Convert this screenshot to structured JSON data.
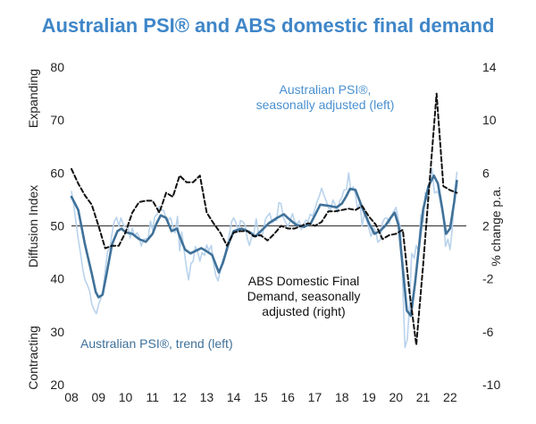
{
  "title": "Australian PSI® and ABS domestic final demand",
  "colors": {
    "title": "#3f86c8",
    "psi_sa": "#b9d3ec",
    "psi_trend": "#3f7199",
    "abs": "#111111",
    "refline": "#444444",
    "label_sa": "#4a90d0",
    "label_trend": "#3f7199"
  },
  "chart_data": {
    "type": "line",
    "title": "Australian PSI® and ABS domestic final demand",
    "ylabel": "Diffusion Index",
    "ylabel_top": "Expanding",
    "ylabel_bottom": "Contracting",
    "y2label": "% change p.a.",
    "xlim": [
      2008.0,
      2022.6
    ],
    "ylim": [
      20,
      80
    ],
    "y2lim": [
      -10,
      14
    ],
    "xticks": [
      "08",
      "09",
      "10",
      "11",
      "12",
      "13",
      "14",
      "15",
      "16",
      "17",
      "18",
      "19",
      "20",
      "21",
      "22"
    ],
    "yticks": [
      "20",
      "30",
      "40",
      "50",
      "60",
      "70",
      "80"
    ],
    "y2ticks": [
      "-10",
      "-6",
      "-2",
      "2",
      "6",
      "10",
      "14"
    ],
    "reference_line": 50,
    "grid": false,
    "series": [
      {
        "name": "Australian PSI®, seasonally adjusted (left)",
        "axis": "left",
        "style": "thin-light",
        "x": [
          2008.0,
          2008.08,
          2008.17,
          2008.25,
          2008.33,
          2008.42,
          2008.5,
          2008.58,
          2008.67,
          2008.75,
          2008.83,
          2008.92,
          2009.0,
          2009.08,
          2009.17,
          2009.25,
          2009.33,
          2009.42,
          2009.5,
          2009.58,
          2009.67,
          2009.75,
          2009.83,
          2009.92,
          2010.0,
          2010.08,
          2010.17,
          2010.25,
          2010.33,
          2010.42,
          2010.5,
          2010.58,
          2010.67,
          2010.75,
          2010.83,
          2010.92,
          2011.0,
          2011.08,
          2011.17,
          2011.25,
          2011.33,
          2011.42,
          2011.5,
          2011.58,
          2011.67,
          2011.75,
          2011.83,
          2011.92,
          2012.0,
          2012.08,
          2012.17,
          2012.25,
          2012.33,
          2012.42,
          2012.5,
          2012.58,
          2012.67,
          2012.75,
          2012.83,
          2012.92,
          2013.0,
          2013.08,
          2013.17,
          2013.25,
          2013.33,
          2013.42,
          2013.5,
          2013.58,
          2013.67,
          2013.75,
          2013.83,
          2013.92,
          2014.0,
          2014.08,
          2014.17,
          2014.25,
          2014.33,
          2014.42,
          2014.5,
          2014.58,
          2014.67,
          2014.75,
          2014.83,
          2014.92,
          2015.0,
          2015.08,
          2015.17,
          2015.25,
          2015.33,
          2015.42,
          2015.5,
          2015.58,
          2015.67,
          2015.75,
          2015.83,
          2015.92,
          2016.0,
          2016.08,
          2016.17,
          2016.25,
          2016.33,
          2016.42,
          2016.5,
          2016.58,
          2016.67,
          2016.75,
          2016.83,
          2016.92,
          2017.0,
          2017.08,
          2017.17,
          2017.25,
          2017.33,
          2017.42,
          2017.5,
          2017.58,
          2017.67,
          2017.75,
          2017.83,
          2017.92,
          2018.0,
          2018.08,
          2018.17,
          2018.25,
          2018.33,
          2018.42,
          2018.5,
          2018.58,
          2018.67,
          2018.75,
          2018.83,
          2018.92,
          2019.0,
          2019.08,
          2019.17,
          2019.25,
          2019.33,
          2019.42,
          2019.5,
          2019.58,
          2019.67,
          2019.75,
          2019.83,
          2019.92,
          2020.0,
          2020.08,
          2020.17,
          2020.25,
          2020.33,
          2020.42,
          2020.5,
          2020.58,
          2020.67,
          2020.75,
          2020.83,
          2020.92,
          2021.0,
          2021.08,
          2021.17,
          2021.25,
          2021.33,
          2021.42,
          2021.5,
          2021.58,
          2021.67,
          2021.75,
          2021.83,
          2021.92,
          2022.0,
          2022.08,
          2022.17,
          2022.25
        ],
        "values": [
          56.5,
          54.1,
          50.6,
          47.5,
          45.0,
          41.8,
          39.8,
          38.9,
          37.7,
          35.3,
          34.2,
          33.4,
          35.1,
          36.2,
          37.9,
          41.6,
          45.1,
          45.9,
          48.5,
          50.8,
          51.6,
          49.9,
          51.5,
          50.2,
          49.8,
          50.0,
          47.7,
          49.6,
          48.0,
          48.7,
          48.0,
          46.2,
          47.4,
          47.6,
          47.5,
          50.9,
          49.2,
          51.7,
          52.2,
          53.7,
          53.1,
          52.8,
          51.2,
          51.2,
          51.5,
          49.8,
          48.7,
          51.8,
          45.3,
          48.8,
          45.3,
          42.2,
          39.8,
          42.9,
          43.3,
          46.1,
          45.0,
          43.3,
          45.0,
          44.4,
          46.4,
          45.3,
          46.3,
          43.2,
          40.7,
          39.6,
          41.4,
          43.3,
          44.6,
          46.4,
          48.1,
          50.8,
          51.5,
          50.6,
          48.9,
          51.0,
          50.8,
          50.2,
          47.7,
          46.3,
          47.9,
          48.7,
          51.3,
          48.4,
          47.9,
          48.7,
          51.2,
          51.9,
          52.4,
          50.6,
          51.0,
          51.0,
          54.4,
          54.2,
          51.6,
          50.7,
          49.8,
          50.8,
          52.3,
          50.9,
          50.3,
          51.0,
          49.3,
          50.3,
          51.1,
          50.8,
          52.2,
          51.9,
          53.2,
          54.6,
          55.7,
          57.1,
          55.9,
          54.7,
          53.4,
          53.0,
          54.9,
          54.0,
          52.5,
          54.7,
          55.4,
          56.8,
          56.9,
          60.0,
          56.7,
          57.4,
          56.0,
          53.1,
          54.6,
          50.0,
          52.4,
          51.1,
          49.5,
          48.0,
          49.7,
          48.9,
          46.9,
          47.4,
          50.6,
          51.4,
          51.5,
          50.4,
          51.9,
          52.8,
          53.5,
          51.4,
          49.6,
          38.5,
          27.0,
          28.6,
          34.8,
          44.8,
          43.9,
          46.3,
          45.3,
          52.1,
          50.7,
          56.3,
          54.9,
          58.2,
          60.9,
          56.2,
          56.5,
          56.1,
          53.7,
          51.9,
          46.1,
          47.5,
          45.5,
          49.5,
          56.6,
          60.1
        ]
      },
      {
        "name": "Australian PSI®, trend (left)",
        "axis": "left",
        "style": "thick",
        "x": [
          2008.0,
          2008.25,
          2008.5,
          2008.75,
          2008.9,
          2009.0,
          2009.15,
          2009.3,
          2009.5,
          2009.7,
          2009.85,
          2010.0,
          2010.25,
          2010.5,
          2010.75,
          2011.0,
          2011.15,
          2011.3,
          2011.5,
          2011.7,
          2011.9,
          2012.0,
          2012.2,
          2012.4,
          2012.6,
          2012.8,
          2013.0,
          2013.2,
          2013.35,
          2013.45,
          2013.6,
          2013.8,
          2014.0,
          2014.3,
          2014.6,
          2014.8,
          2015.0,
          2015.3,
          2015.6,
          2015.85,
          2016.0,
          2016.3,
          2016.6,
          2016.85,
          2017.0,
          2017.2,
          2017.5,
          2017.8,
          2018.0,
          2018.15,
          2018.3,
          2018.5,
          2018.75,
          2019.0,
          2019.2,
          2019.4,
          2019.6,
          2019.8,
          2019.95,
          2020.1,
          2020.25,
          2020.4,
          2020.55,
          2020.7,
          2020.85,
          2021.0,
          2021.2,
          2021.4,
          2021.55,
          2021.7,
          2021.85,
          2022.0,
          2022.15,
          2022.25
        ],
        "values": [
          55.5,
          53.0,
          46.5,
          41.0,
          37.5,
          36.5,
          37.0,
          41.0,
          46.5,
          49.0,
          49.5,
          48.8,
          48.5,
          47.5,
          47.0,
          48.5,
          50.5,
          52.0,
          51.5,
          49.0,
          49.5,
          48.0,
          45.5,
          44.8,
          45.3,
          45.8,
          45.2,
          44.5,
          42.5,
          41.2,
          43.0,
          46.5,
          49.0,
          49.5,
          48.8,
          48.0,
          49.0,
          50.5,
          51.5,
          52.2,
          51.5,
          50.2,
          49.8,
          50.5,
          52.0,
          54.0,
          53.8,
          53.5,
          54.2,
          55.5,
          57.0,
          56.8,
          53.5,
          50.5,
          48.5,
          49.0,
          50.0,
          51.5,
          52.5,
          50.0,
          42.0,
          34.0,
          33.0,
          39.0,
          46.0,
          53.0,
          57.5,
          59.5,
          58.0,
          53.5,
          48.5,
          49.5,
          54.5,
          58.5
        ]
      },
      {
        "name": "ABS Domestic Final Demand, seasonally adjusted (right)",
        "axis": "right",
        "style": "dashed",
        "x": [
          2008.0,
          2008.25,
          2008.5,
          2008.75,
          2009.0,
          2009.25,
          2009.5,
          2009.75,
          2010.0,
          2010.25,
          2010.5,
          2010.75,
          2011.0,
          2011.25,
          2011.5,
          2011.75,
          2012.0,
          2012.25,
          2012.5,
          2012.75,
          2013.0,
          2013.25,
          2013.5,
          2013.75,
          2014.0,
          2014.25,
          2014.5,
          2014.75,
          2015.0,
          2015.25,
          2015.5,
          2015.75,
          2016.0,
          2016.25,
          2016.5,
          2016.75,
          2017.0,
          2017.25,
          2017.5,
          2017.75,
          2018.0,
          2018.25,
          2018.5,
          2018.75,
          2019.0,
          2019.25,
          2019.5,
          2019.75,
          2020.0,
          2020.25,
          2020.5,
          2020.75,
          2021.0,
          2021.25,
          2021.5,
          2021.75,
          2022.0,
          2022.25
        ],
        "values": [
          6.3,
          5.2,
          4.3,
          3.6,
          2.0,
          0.3,
          0.5,
          0.5,
          1.5,
          3.0,
          3.8,
          3.9,
          3.9,
          3.0,
          4.5,
          4.2,
          5.8,
          5.3,
          5.3,
          5.8,
          3.0,
          2.2,
          1.5,
          0.5,
          1.5,
          1.6,
          1.6,
          1.2,
          1.3,
          0.9,
          1.4,
          2.0,
          1.8,
          1.8,
          2.0,
          2.2,
          2.0,
          2.3,
          3.1,
          3.1,
          3.2,
          3.3,
          3.2,
          3.5,
          2.7,
          2.1,
          1.0,
          1.3,
          1.4,
          1.7,
          -3.0,
          -7.0,
          -1.0,
          5.5,
          12.0,
          5.0,
          4.7,
          4.5
        ]
      }
    ]
  },
  "annotations": {
    "psi_sa_line1": "Australian PSI®,",
    "psi_sa_line2": "seasonally adjusted (left)",
    "abs_line1": "ABS Domestic Final",
    "abs_line2": "Demand, seasonally",
    "abs_line3": "adjusted (right)",
    "psi_trend": "Australian PSI®, trend (left)"
  }
}
